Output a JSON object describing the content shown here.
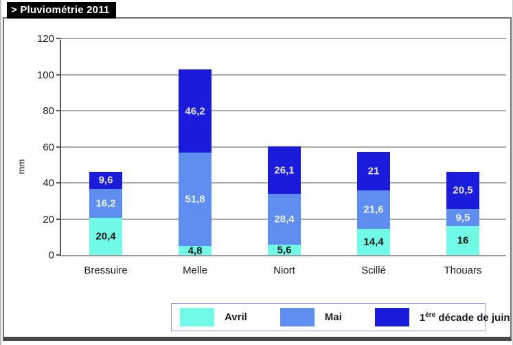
{
  "title": "> Pluviométrie 2011",
  "chart_data": {
    "type": "bar",
    "stacked": true,
    "title": "> Pluviométrie 2011",
    "xlabel": "",
    "ylabel": "mm",
    "ylim": [
      0,
      120
    ],
    "yticks": [
      0,
      20,
      40,
      60,
      80,
      100,
      120
    ],
    "grid": true,
    "legend_position": "bottom",
    "categories": [
      "Bressuire",
      "Melle",
      "Niort",
      "Scillé",
      "Thouars"
    ],
    "series": [
      {
        "name": "Avril",
        "color": "#71fbe7",
        "label_color": "#041414",
        "values": [
          20.4,
          4.8,
          5.6,
          14.4,
          16
        ],
        "value_labels": [
          "20,4",
          "4,8",
          "5,6",
          "14,4",
          "16"
        ]
      },
      {
        "name": "Mai",
        "color": "#5e8ef0",
        "label_color": "#eef2ff",
        "values": [
          16.2,
          51.8,
          28.4,
          21.6,
          9.5
        ],
        "value_labels": [
          "16,2",
          "51,8",
          "28,4",
          "21,6",
          "9,5"
        ]
      },
      {
        "name": "1ère décade de juin",
        "color": "#1b1bdc",
        "label_color": "#e8e8ff",
        "values": [
          9.6,
          46.2,
          26.1,
          21,
          20.5
        ],
        "value_labels": [
          "9,6",
          "46,2",
          "26,1",
          "21",
          "20,5"
        ]
      }
    ],
    "totals": [
      46.2,
      102.8,
      60.1,
      57,
      46
    ]
  },
  "colors": {
    "grid": "#ababab",
    "y_axis": "#565656",
    "x_axis": "#9a9a9a",
    "title_bg": "#000000",
    "title_fg": "#ffffff",
    "legend_border": "#9a9ad6"
  }
}
